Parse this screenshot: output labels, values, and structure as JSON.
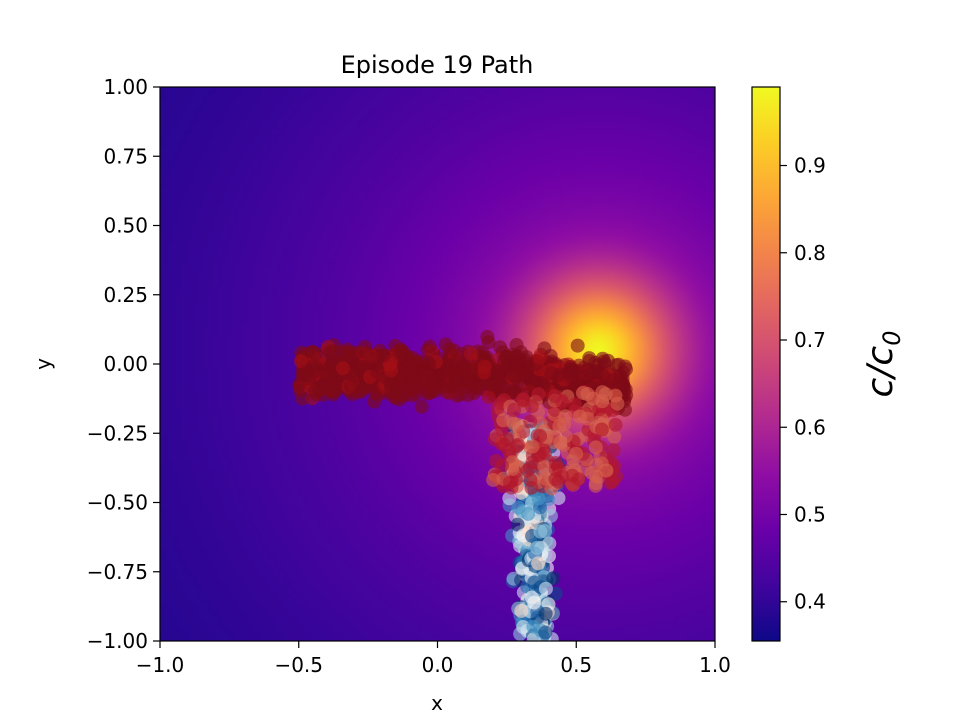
{
  "chart_data": {
    "type": "heatmap",
    "title": "Episode 19 Path",
    "xlabel": "x",
    "ylabel": "y",
    "xlim": [
      -1.0,
      1.0
    ],
    "ylim": [
      -1.0,
      1.0
    ],
    "x_ticks": [
      -1.0,
      -0.5,
      0.0,
      0.5,
      1.0
    ],
    "x_tick_labels": [
      "−1.0",
      "−0.5",
      "0.0",
      "0.5",
      "1.0"
    ],
    "y_ticks": [
      1.0,
      0.75,
      0.5,
      0.25,
      0.0,
      -0.25,
      -0.5,
      -0.75,
      -1.0
    ],
    "y_tick_labels": [
      "1.00",
      "0.75",
      "0.50",
      "0.25",
      "0.00",
      "−0.25",
      "−0.50",
      "−0.75",
      "−1.00"
    ],
    "grid": false,
    "colormap": "plasma",
    "field": {
      "description_source": "concentration field c/c0 centered near source",
      "source_x": 0.58,
      "source_y": 0.05,
      "min": 0.355,
      "max": 0.99
    },
    "colorbar": {
      "label_main": "c/c",
      "label_sub": "0",
      "range": [
        0.355,
        0.99
      ],
      "ticks": [
        0.4,
        0.5,
        0.6,
        0.7,
        0.8,
        0.9
      ],
      "tick_labels": [
        "0.4",
        "0.5",
        "0.6",
        "0.7",
        "0.8",
        "0.9"
      ]
    },
    "path_points_colormap": "RdBu",
    "path_marker_alpha": 0.6
  }
}
